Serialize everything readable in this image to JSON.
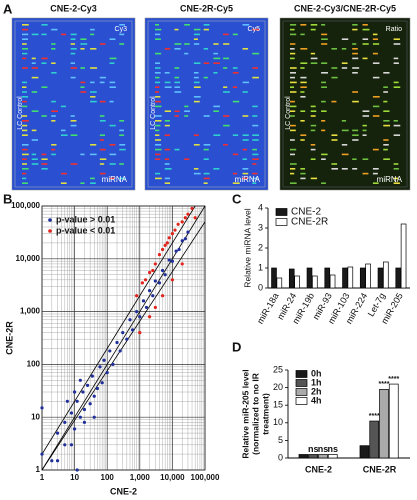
{
  "panel_a": {
    "panel": "A",
    "images": [
      {
        "title": "CNE-2-Cy3",
        "channel": "Cy3",
        "side_label": "LC Control",
        "bottom_label": "miRNA"
      },
      {
        "title": "CNE-2R-Cy5",
        "channel": "Cy5",
        "side_label": "LC Control",
        "bottom_label": "miRNA"
      },
      {
        "title": "CNE-2-Cy3/CNE-2R-Cy5",
        "channel": "Ratio",
        "side_label": "LC Control",
        "bottom_label": "miRNA"
      }
    ]
  },
  "chart_data": [
    {
      "type": "scatter",
      "panel": "B",
      "xlabel": "CNE-2",
      "ylabel": "CNE-2R",
      "xscale": "log",
      "yscale": "log",
      "grid": true,
      "legend": "upper left",
      "xlim": [
        1,
        100000
      ],
      "ylim": [
        1,
        100000
      ],
      "xticks": [
        1,
        10,
        100,
        {
          "value": 1000,
          "label": "1,000"
        },
        {
          "value": 10000,
          "label": "10,000"
        },
        {
          "value": 100000,
          "label": "100,000"
        }
      ],
      "yticks": [
        1,
        10,
        100,
        {
          "value": 1000,
          "label": "1,000"
        },
        {
          "value": 10000,
          "label": "10,000"
        },
        {
          "value": 100000,
          "label": "100,000"
        }
      ],
      "series": [
        {
          "name": "p-value > 0.01",
          "color": "#1f2f9a",
          "x": [
            1,
            2,
            3,
            5,
            5,
            8,
            10,
            12,
            15,
            18,
            20,
            25,
            30,
            35,
            40,
            50,
            60,
            70,
            80,
            100,
            120,
            150,
            200,
            250,
            300,
            400,
            500,
            600,
            800,
            1000,
            1300,
            1600,
            2000,
            2500,
            3000,
            4000,
            5000,
            6000,
            8000,
            10000,
            13000,
            16000,
            20000,
            25000,
            30000,
            8,
            6,
            15,
            40,
            3,
            10,
            20,
            12,
            1
          ],
          "y": [
            2,
            1.5,
            5,
            3,
            8,
            12,
            6,
            20,
            10,
            30,
            14,
            40,
            18,
            60,
            25,
            35,
            90,
            45,
            120,
            70,
            180,
            100,
            260,
            180,
            400,
            300,
            700,
            450,
            1000,
            800,
            1600,
            1200,
            2500,
            2000,
            3800,
            3500,
            6000,
            5000,
            9500,
            9000,
            14000,
            15000,
            22000,
            24000,
            32000,
            3,
            20,
            50,
            10,
            1.5,
            30,
            8,
            1,
            15
          ]
        },
        {
          "name": "p-value < 0.01",
          "color": "#e0241b",
          "x": [
            800,
            1200,
            1500,
            2000,
            2500,
            3000,
            4000,
            5000,
            6000,
            7000,
            8000,
            10000,
            12000,
            15000,
            20000,
            25000,
            30000,
            40000,
            50000,
            1000,
            2000,
            5000,
            10000,
            20000,
            3000
          ],
          "y": [
            2000,
            3500,
            4000,
            5500,
            6000,
            8000,
            12000,
            15000,
            18000,
            20000,
            25000,
            30000,
            35000,
            45000,
            50000,
            60000,
            70000,
            90000,
            60000,
            400,
            800,
            2000,
            4000,
            8000,
            1200
          ]
        }
      ]
    },
    {
      "type": "bar",
      "panel": "C",
      "ylabel": "Relative miRNA level",
      "legend": "upper left",
      "categories": [
        "miR-18a",
        "miR-24",
        "miR-19b",
        "miR-93",
        "miR-103",
        "miR-224",
        "Let-7g",
        "miR-205"
      ],
      "ylim": [
        0,
        4
      ],
      "yticks": [
        0,
        1,
        2,
        3,
        4
      ],
      "series": [
        {
          "name": "CNE-2",
          "color": "#1a1a1a",
          "values": [
            1,
            0.95,
            1,
            1,
            1,
            1,
            1,
            1
          ]
        },
        {
          "name": "CNE-2R",
          "color": "#ffffff",
          "values": [
            0.5,
            0.6,
            0.6,
            0.65,
            1.05,
            1.2,
            1.3,
            3.2
          ]
        }
      ]
    },
    {
      "type": "bar",
      "panel": "D",
      "ylabel": [
        "Relative miR-205 level",
        "(normalized to no IR",
        "treatment)"
      ],
      "legend": "upper left",
      "categories": [
        "CNE-2",
        "CNE-2R"
      ],
      "ylim": [
        0,
        25
      ],
      "yticks": [
        0,
        5,
        10,
        15,
        20,
        25
      ],
      "series": [
        {
          "name": "0h",
          "color": "#1a1a1a",
          "values": [
            1,
            3.5
          ],
          "annotations": [
            null,
            null
          ]
        },
        {
          "name": "1h",
          "color": "#555555",
          "values": [
            1,
            10.5
          ],
          "annotations": [
            "ns",
            "****"
          ]
        },
        {
          "name": "2h",
          "color": "#aaaaaa",
          "values": [
            1,
            19.5
          ],
          "annotations": [
            "ns",
            "****"
          ]
        },
        {
          "name": "4h",
          "color": "#ffffff",
          "values": [
            1,
            21
          ],
          "annotations": [
            "ns",
            "****"
          ]
        }
      ]
    }
  ]
}
